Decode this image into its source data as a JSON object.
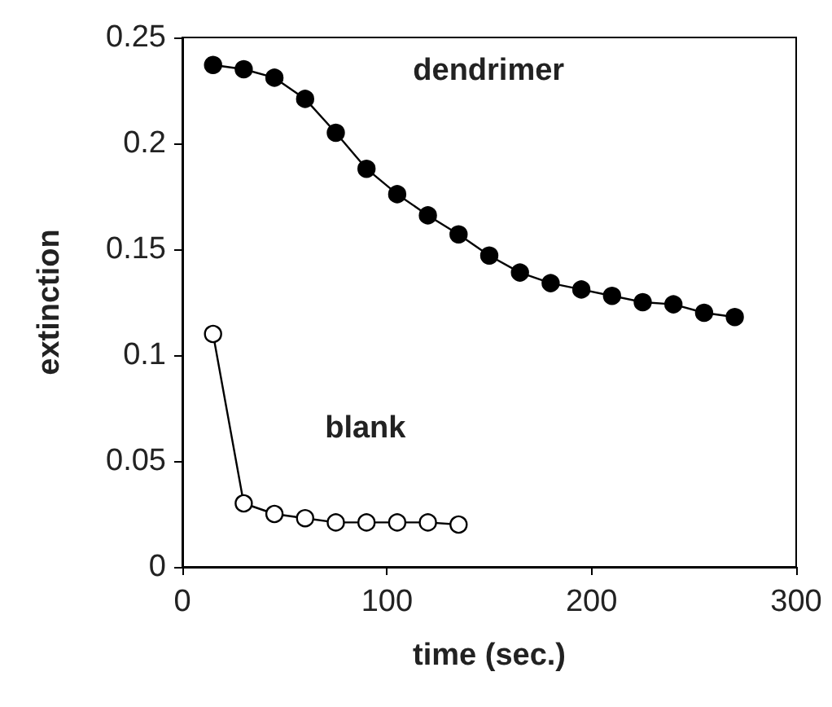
{
  "chart_data": {
    "type": "line",
    "xlabel": "time (sec.)",
    "ylabel": "extinction",
    "xlim": [
      0,
      300
    ],
    "xticks": [
      0,
      100,
      200,
      300
    ],
    "ylim": [
      0,
      0.25
    ],
    "yticks": [
      0,
      0.05,
      0.1,
      0.15,
      0.2,
      0.25
    ],
    "grid": false,
    "legend": false,
    "marker": "circle",
    "line_style": "solid",
    "series": [
      {
        "name": "dendrimer",
        "color": "#000000",
        "x": [
          15,
          30,
          45,
          60,
          75,
          90,
          105,
          120,
          135,
          150,
          165,
          180,
          195,
          210,
          225,
          240,
          255,
          270
        ],
        "values": [
          0.237,
          0.235,
          0.231,
          0.221,
          0.205,
          0.188,
          0.176,
          0.166,
          0.157,
          0.147,
          0.139,
          0.134,
          0.131,
          0.128,
          0.125,
          0.124,
          0.12,
          0.118
        ]
      },
      {
        "name": "blank",
        "color": "#ffffff",
        "x": [
          15,
          30,
          45,
          60,
          75,
          90,
          105,
          120,
          135
        ],
        "values": [
          0.11,
          0.03,
          0.025,
          0.023,
          0.021,
          0.021,
          0.021,
          0.021,
          0.02
        ]
      }
    ]
  }
}
